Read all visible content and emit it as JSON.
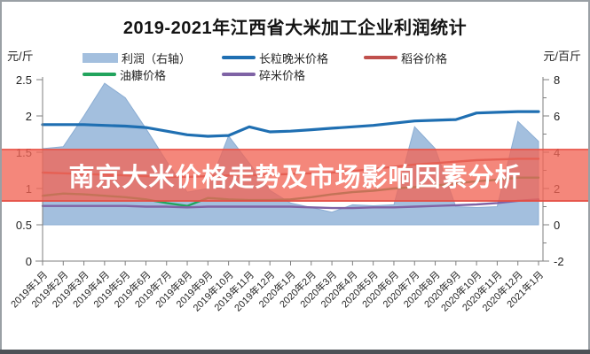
{
  "frame": {
    "title": "2019-2021年江西省大米加工企业利润统计",
    "unit_left": "元/斤",
    "unit_right": "元/百斤"
  },
  "banner": {
    "text": "南京大米价格走势及市场影响因素分析",
    "bg_color": "#f06556",
    "text_color": "#ffffff"
  },
  "chart_data": {
    "type": "area",
    "note_types": "series[0] is area on right axis; series[1..4] are lines on left axis",
    "title": "2019-2021年江西省大米加工企业利润统计",
    "left_axis": {
      "label": "元/斤",
      "min": 0,
      "max": 2.5,
      "tick_labels": [
        "0",
        "0.5",
        "1",
        "1.5",
        "2",
        "2.5"
      ],
      "tick_values": [
        0,
        0.5,
        1,
        1.5,
        2,
        2.5
      ]
    },
    "right_axis": {
      "label": "元/百斤",
      "min": -2,
      "max": 8,
      "tick_labels": [
        "-2",
        "0",
        "2",
        "4",
        "6",
        "8"
      ],
      "tick_values": [
        -2,
        0,
        2,
        4,
        6,
        8
      ],
      "minor_tick_values": [
        -1,
        1,
        3,
        5,
        7
      ]
    },
    "x_categories": [
      "2019年1月",
      "2019年2月",
      "2019年3月",
      "2019年4月",
      "2019年5月",
      "2019年6月",
      "2019年7月",
      "2019年8月",
      "2019年9月",
      "2019年10月",
      "2019年11月",
      "2019年12月",
      "2020年1月",
      "2020年2月",
      "2020年3月",
      "2020年4月",
      "2020年5月",
      "2020年6月",
      "2020年7月",
      "2020年8月",
      "2020年9月",
      "2020年10月",
      "2020年11月",
      "2020年12月",
      "2021年1月"
    ],
    "series": [
      {
        "name": "利润（右轴）",
        "type": "area",
        "axis": "right",
        "color": "#a3bfde",
        "edge_color": "#8badd3",
        "values": [
          4.2,
          4.3,
          6.0,
          7.8,
          7.0,
          5.3,
          3.5,
          1.8,
          2.0,
          4.9,
          3.4,
          1.9,
          1.2,
          0.95,
          0.7,
          1.1,
          1.05,
          1.1,
          5.4,
          4.2,
          1.0,
          0.95,
          1.0,
          5.7,
          4.6
        ]
      },
      {
        "name": "长粒晚米价格",
        "type": "line",
        "axis": "left",
        "color": "#1f6fb2",
        "values": [
          1.88,
          1.88,
          1.88,
          1.87,
          1.86,
          1.84,
          1.79,
          1.74,
          1.72,
          1.73,
          1.85,
          1.78,
          1.79,
          1.81,
          1.83,
          1.85,
          1.87,
          1.9,
          1.93,
          1.94,
          1.95,
          2.04,
          2.05,
          2.06,
          2.06
        ]
      },
      {
        "name": "稻谷价格",
        "type": "line",
        "axis": "left",
        "color": "#c0504d",
        "values": [
          1.22,
          1.21,
          1.2,
          1.19,
          1.18,
          1.17,
          1.16,
          1.16,
          1.17,
          1.18,
          1.18,
          1.19,
          1.2,
          1.21,
          1.22,
          1.24,
          1.27,
          1.3,
          1.33,
          1.35,
          1.37,
          1.39,
          1.4,
          1.41,
          1.41
        ]
      },
      {
        "name": "油糠价格",
        "type": "line",
        "axis": "left",
        "color": "#22a45d",
        "values": [
          0.9,
          0.93,
          0.92,
          0.9,
          0.88,
          0.85,
          0.8,
          0.76,
          0.87,
          0.85,
          0.84,
          0.84,
          0.85,
          0.88,
          0.92,
          0.95,
          0.97,
          1.0,
          1.02,
          1.04,
          1.07,
          1.1,
          1.12,
          1.15,
          1.15
        ]
      },
      {
        "name": "碎米价格",
        "type": "line",
        "axis": "left",
        "color": "#7f63a5",
        "values": [
          0.76,
          0.76,
          0.76,
          0.76,
          0.76,
          0.75,
          0.75,
          0.74,
          0.75,
          0.75,
          0.75,
          0.75,
          0.75,
          0.74,
          0.73,
          0.73,
          0.74,
          0.74,
          0.75,
          0.76,
          0.77,
          0.78,
          0.8,
          0.83,
          0.85
        ]
      }
    ],
    "legend_position": "top",
    "grid": false
  }
}
